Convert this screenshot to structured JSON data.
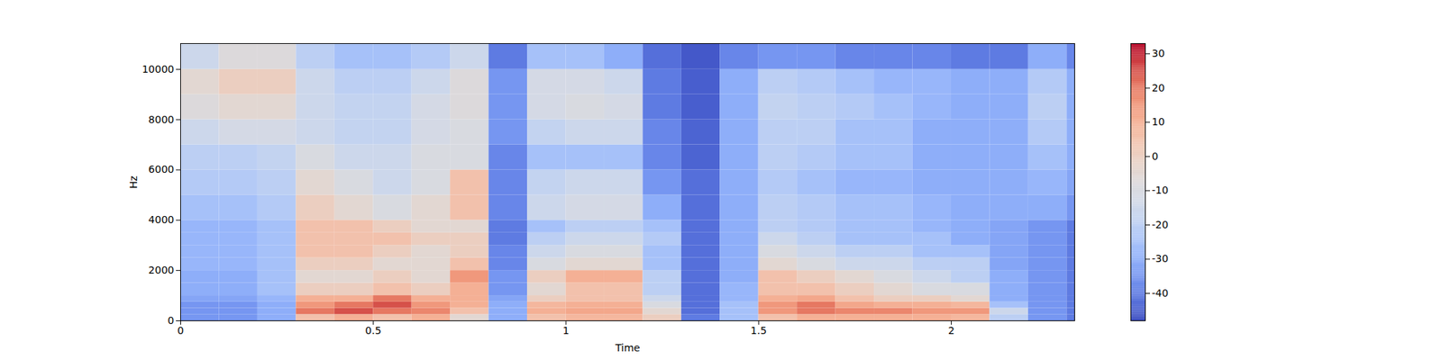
{
  "chart_data": {
    "type": "heatmap",
    "x_label": "Time",
    "y_label": "Hz",
    "xlim": [
      0,
      2.32
    ],
    "xticks": [
      0,
      0.5,
      1,
      1.5,
      2
    ],
    "ylim": [
      0,
      11025
    ],
    "yticks": [
      0,
      2000,
      4000,
      6000,
      8000,
      10000
    ],
    "x_edges": [
      0,
      0.1,
      0.2,
      0.3,
      0.4,
      0.5,
      0.6,
      0.7,
      0.8,
      0.9,
      1.0,
      1.1,
      1.2,
      1.3,
      1.4,
      1.5,
      1.6,
      1.7,
      1.8,
      1.9,
      2.0,
      2.1,
      2.2,
      2.3,
      2.32
    ],
    "y_edges": [
      0,
      250,
      500,
      750,
      1000,
      1500,
      2000,
      2500,
      3000,
      3500,
      4000,
      5000,
      6000,
      7000,
      8000,
      9000,
      10000,
      11025
    ],
    "z": [
      [
        -35,
        -35,
        -30,
        5,
        10,
        5,
        10,
        -5,
        -30,
        5,
        8,
        8,
        0,
        -40,
        -25,
        5,
        10,
        10,
        10,
        10,
        8,
        -20,
        -35,
        -40
      ],
      [
        -35,
        -35,
        -30,
        20,
        25,
        20,
        18,
        5,
        -30,
        10,
        12,
        12,
        -5,
        -42,
        -25,
        15,
        20,
        18,
        18,
        15,
        15,
        -15,
        -35,
        -40
      ],
      [
        -35,
        -35,
        -30,
        15,
        20,
        25,
        15,
        10,
        -30,
        8,
        10,
        10,
        -10,
        -42,
        -25,
        15,
        20,
        12,
        10,
        10,
        8,
        -25,
        -35,
        -40
      ],
      [
        -32,
        -32,
        -28,
        10,
        10,
        20,
        10,
        10,
        -32,
        0,
        5,
        5,
        -15,
        -42,
        -28,
        10,
        12,
        5,
        0,
        0,
        -5,
        -30,
        -35,
        -40
      ],
      [
        -30,
        -30,
        -25,
        0,
        0,
        5,
        0,
        10,
        -35,
        -5,
        5,
        5,
        -20,
        -42,
        -28,
        5,
        5,
        0,
        -5,
        -10,
        -10,
        -30,
        -35,
        -40
      ],
      [
        -30,
        -30,
        -25,
        -5,
        -5,
        0,
        -5,
        15,
        -35,
        0,
        10,
        10,
        -20,
        -42,
        -30,
        5,
        0,
        -5,
        -10,
        -15,
        -20,
        -30,
        -35,
        -40
      ],
      [
        -28,
        -28,
        -25,
        0,
        0,
        -5,
        -5,
        5,
        -38,
        -10,
        -5,
        -5,
        -25,
        -42,
        -30,
        -5,
        -10,
        -15,
        -15,
        -20,
        -20,
        -32,
        -35,
        -40
      ],
      [
        -28,
        -28,
        -25,
        5,
        5,
        0,
        -5,
        0,
        -38,
        -15,
        -10,
        -10,
        -25,
        -42,
        -30,
        -10,
        -15,
        -20,
        -20,
        -25,
        -25,
        -32,
        -35,
        -40
      ],
      [
        -28,
        -28,
        -25,
        5,
        5,
        5,
        0,
        0,
        -40,
        -20,
        -15,
        -15,
        -22,
        -42,
        -30,
        -15,
        -20,
        -25,
        -25,
        -25,
        -30,
        -32,
        -35,
        -40
      ],
      [
        -28,
        -28,
        -25,
        5,
        5,
        0,
        -5,
        -5,
        -40,
        -25,
        -20,
        -20,
        -25,
        -42,
        -30,
        -20,
        -22,
        -25,
        -25,
        -28,
        -30,
        -32,
        -35,
        -40
      ],
      [
        -25,
        -25,
        -22,
        0,
        -5,
        -10,
        -5,
        5,
        -38,
        -15,
        -12,
        -12,
        -30,
        -42,
        -30,
        -20,
        -22,
        -25,
        -25,
        -28,
        -30,
        -30,
        -30,
        -35
      ],
      [
        -22,
        -22,
        -20,
        -5,
        -10,
        -15,
        -10,
        5,
        -38,
        -18,
        -15,
        -15,
        -35,
        -42,
        -30,
        -22,
        -25,
        -28,
        -28,
        -30,
        -30,
        -30,
        -28,
        -32
      ],
      [
        -20,
        -20,
        -18,
        -10,
        -15,
        -15,
        -10,
        -10,
        -38,
        -25,
        -25,
        -25,
        -38,
        -44,
        -30,
        -20,
        -22,
        -25,
        -25,
        -30,
        -30,
        -30,
        -25,
        -30
      ],
      [
        -15,
        -12,
        -12,
        -15,
        -18,
        -18,
        -12,
        -10,
        -35,
        -18,
        -15,
        -15,
        -38,
        -44,
        -30,
        -20,
        -20,
        -25,
        -25,
        -30,
        -30,
        -30,
        -22,
        -30
      ],
      [
        -8,
        -5,
        -5,
        -15,
        -18,
        -18,
        -12,
        -8,
        -35,
        -12,
        -10,
        -12,
        -40,
        -45,
        -30,
        -18,
        -20,
        -22,
        -25,
        -28,
        -30,
        -30,
        -20,
        -30
      ],
      [
        -5,
        0,
        0,
        -15,
        -20,
        -20,
        -15,
        -8,
        -35,
        -12,
        -12,
        -15,
        -40,
        -45,
        -30,
        -20,
        -22,
        -25,
        -28,
        -28,
        -30,
        -30,
        -22,
        -30
      ],
      [
        -15,
        -8,
        -8,
        -20,
        -25,
        -25,
        -22,
        -15,
        -40,
        -25,
        -25,
        -30,
        -42,
        -46,
        -38,
        -35,
        -35,
        -38,
        -38,
        -38,
        -40,
        -40,
        -30,
        -38
      ]
    ],
    "colorbar": {
      "lim": [
        -48,
        33
      ],
      "ticks": [
        -40,
        -30,
        -20,
        -10,
        0,
        10,
        20,
        30
      ]
    }
  }
}
